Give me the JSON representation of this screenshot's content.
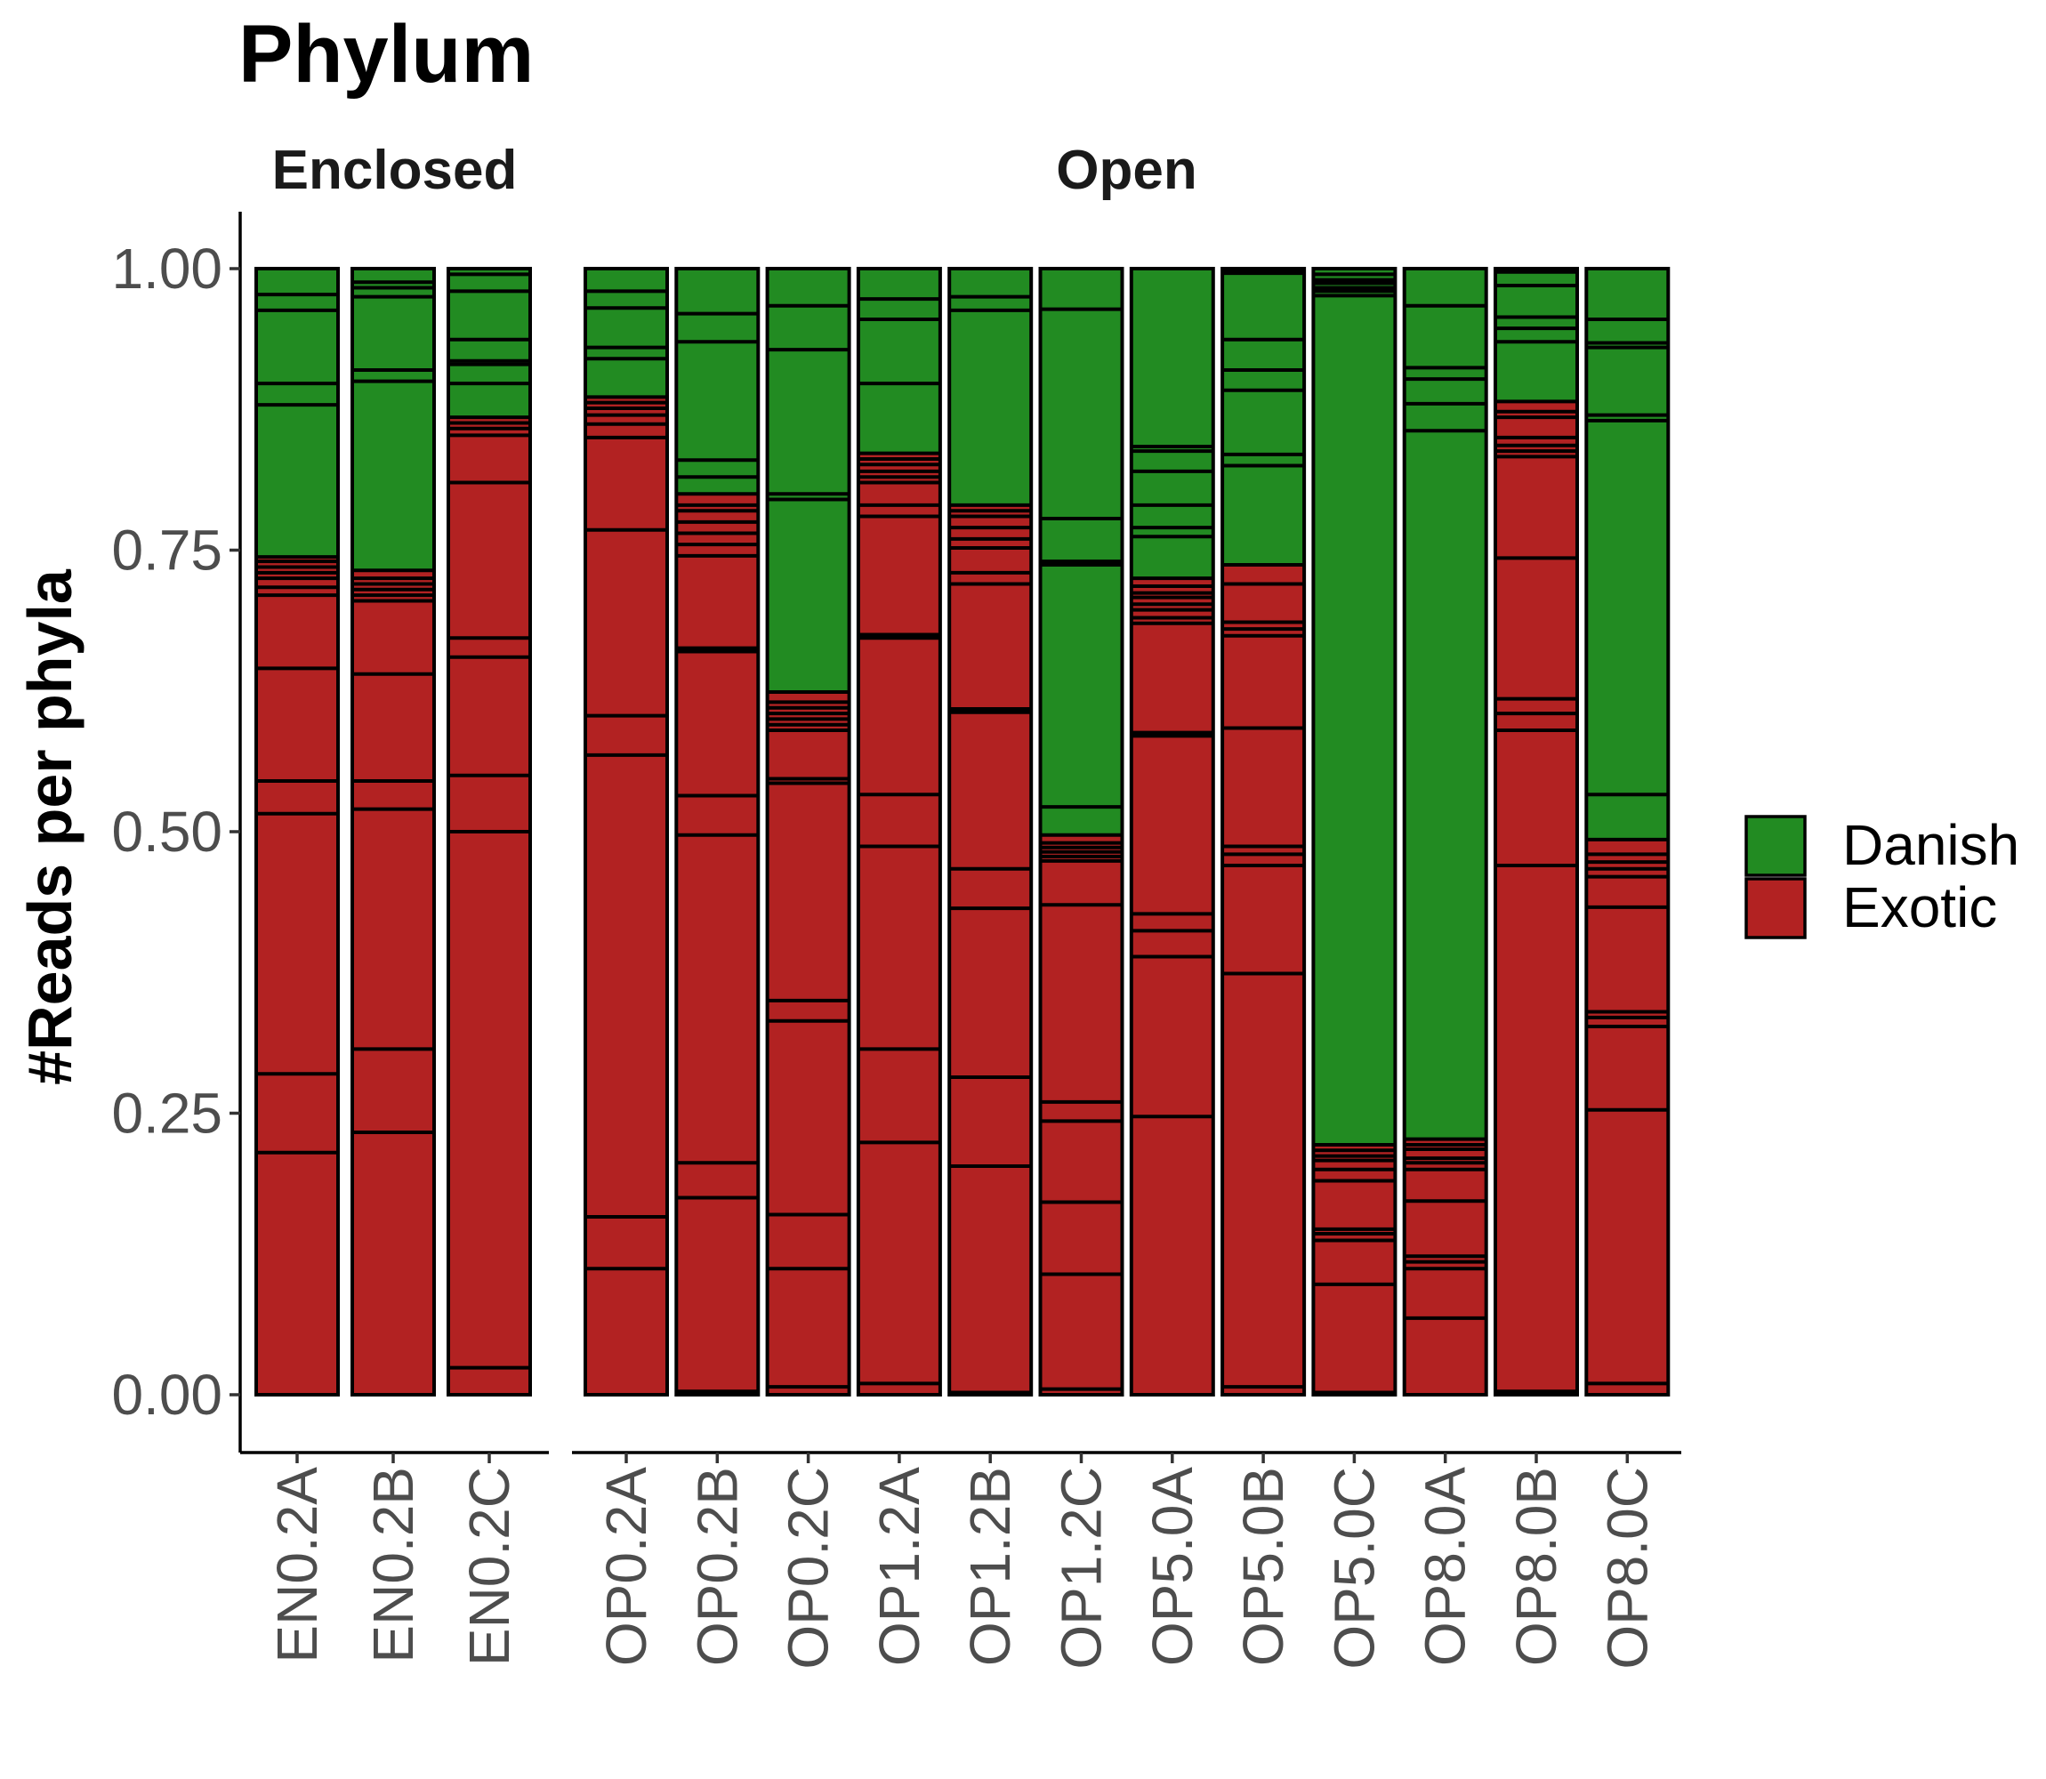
{
  "chart_data": {
    "type": "bar",
    "stacked": true,
    "title": "Phylum",
    "ylabel": "#Reads per phyla",
    "xlabel": "",
    "ylim": [
      0,
      1
    ],
    "yticks": [
      "0.00",
      "0.25",
      "0.50",
      "0.75",
      "1.00"
    ],
    "ytick_values": [
      0,
      0.25,
      0.5,
      0.75,
      1.0
    ],
    "legend": {
      "position": "right",
      "entries": [
        {
          "label": "Danish",
          "color": "#228B22"
        },
        {
          "label": "Exotic",
          "color": "#B22222"
        }
      ]
    },
    "colors": {
      "Danish": "#228B22",
      "Exotic": "#B22222",
      "outline": "#000000"
    },
    "facets": [
      {
        "name": "Enclosed",
        "samples": [
          {
            "name": "EN0.2A",
            "exotic_total": 0.744,
            "exotic": [
              0.0,
              0.215,
              0.285,
              0.516,
              0.545,
              0.645,
              0.71,
              0.717,
              0.725,
              0.73,
              0.735,
              0.74
            ],
            "danish": [
              0.879,
              0.898,
              0.963,
              0.977
            ]
          },
          {
            "name": "EN0.2B",
            "exotic_total": 0.732,
            "exotic": [
              0.233,
              0.307,
              0.52,
              0.545,
              0.64,
              0.705,
              0.71,
              0.715,
              0.72,
              0.725
            ],
            "danish": [
              0.9,
              0.91,
              0.975,
              0.983,
              0.988
            ]
          },
          {
            "name": "EN0.2C",
            "exotic_total": 0.868,
            "exotic": [
              0.024,
              0.5,
              0.55,
              0.655,
              0.672,
              0.81,
              0.852,
              0.858,
              0.863
            ],
            "danish": [
              0.898,
              0.915,
              0.918,
              0.937,
              0.98,
              0.995
            ]
          }
        ]
      },
      {
        "name": "Open",
        "samples": [
          {
            "name": "OP0.2A",
            "exotic_total": 0.886,
            "exotic": [
              0.0,
              0.112,
              0.158,
              0.568,
              0.603,
              0.768,
              0.85,
              0.862,
              0.87,
              0.876,
              0.881
            ],
            "danish": [
              0.92,
              0.93,
              0.965,
              0.98
            ]
          },
          {
            "name": "OP0.2B",
            "exotic_total": 0.8,
            "exotic": [
              0.003,
              0.175,
              0.206,
              0.497,
              0.532,
              0.66,
              0.663,
              0.745,
              0.755,
              0.765,
              0.775,
              0.785,
              0.79
            ],
            "danish": [
              0.815,
              0.83,
              0.935,
              0.96
            ]
          },
          {
            "name": "OP0.2C",
            "exotic_total": 0.624,
            "exotic": [
              0.007,
              0.112,
              0.16,
              0.332,
              0.35,
              0.543,
              0.547,
              0.59,
              0.595,
              0.6,
              0.605,
              0.61,
              0.615
            ],
            "danish": [
              0.795,
              0.8,
              0.928,
              0.967
            ]
          },
          {
            "name": "OP1.2A",
            "exotic_total": 0.836,
            "exotic": [
              0.01,
              0.224,
              0.307,
              0.487,
              0.533,
              0.672,
              0.675,
              0.78,
              0.79,
              0.81,
              0.815,
              0.82,
              0.826,
              0.831
            ],
            "danish": [
              0.898,
              0.955,
              0.973
            ]
          },
          {
            "name": "OP1.2B",
            "exotic_total": 0.79,
            "exotic": [
              0.002,
              0.203,
              0.282,
              0.432,
              0.467,
              0.606,
              0.609,
              0.72,
              0.73,
              0.752,
              0.76,
              0.77
            ],
            "danish": [
              0.78,
              0.785,
              0.963,
              0.975
            ]
          },
          {
            "name": "OP1.2C",
            "exotic_total": 0.497,
            "exotic": [
              0.005,
              0.107,
              0.171,
              0.243,
              0.26,
              0.435,
              0.474,
              0.478,
              0.482,
              0.486,
              0.49
            ],
            "danish": [
              0.522,
              0.737,
              0.74,
              0.778,
              0.964
            ]
          },
          {
            "name": "OP5.0A",
            "exotic_total": 0.725,
            "exotic": [
              0.0,
              0.247,
              0.389,
              0.412,
              0.427,
              0.585,
              0.588,
              0.685,
              0.69,
              0.697,
              0.702,
              0.708,
              0.712,
              0.718
            ],
            "danish": [
              0.762,
              0.77,
              0.79,
              0.82,
              0.838,
              0.842,
              1.0
            ]
          },
          {
            "name": "OP5.0B",
            "exotic_total": 0.737,
            "exotic": [
              0.007,
              0.374,
              0.47,
              0.48,
              0.487,
              0.592,
              0.674,
              0.68,
              0.686,
              0.72
            ],
            "danish": [
              0.825,
              0.835,
              0.892,
              0.91,
              0.937,
              0.996,
              0.998
            ]
          },
          {
            "name": "OP5.0C",
            "exotic_total": 0.222,
            "exotic": [
              0.002,
              0.098,
              0.137,
              0.143,
              0.147,
              0.19,
              0.2,
              0.208,
              0.212,
              0.217
            ],
            "danish": [
              0.976,
              0.98,
              0.983,
              0.987,
              0.99,
              0.995
            ]
          },
          {
            "name": "OP8.0A",
            "exotic_total": 0.227,
            "exotic": [
              0.068,
              0.112,
              0.118,
              0.123,
              0.172,
              0.2,
              0.206,
              0.21,
              0.218,
              0.222
            ],
            "danish": [
              0.856,
              0.88,
              0.902,
              0.912,
              0.967
            ]
          },
          {
            "name": "OP8.0B",
            "exotic_total": 0.882,
            "exotic": [
              0.003,
              0.47,
              0.59,
              0.605,
              0.618,
              0.743,
              0.833,
              0.838,
              0.843,
              0.85,
              0.868,
              0.873
            ],
            "danish": [
              0.935,
              0.947,
              0.957,
              0.985,
              0.997
            ]
          },
          {
            "name": "OP8.0C",
            "exotic_total": 0.493,
            "exotic": [
              0.01,
              0.253,
              0.327,
              0.335,
              0.34,
              0.433,
              0.46,
              0.467,
              0.473,
              0.48
            ],
            "danish": [
              0.533,
              0.865,
              0.87,
              0.93,
              0.934,
              0.955
            ]
          }
        ]
      }
    ]
  }
}
